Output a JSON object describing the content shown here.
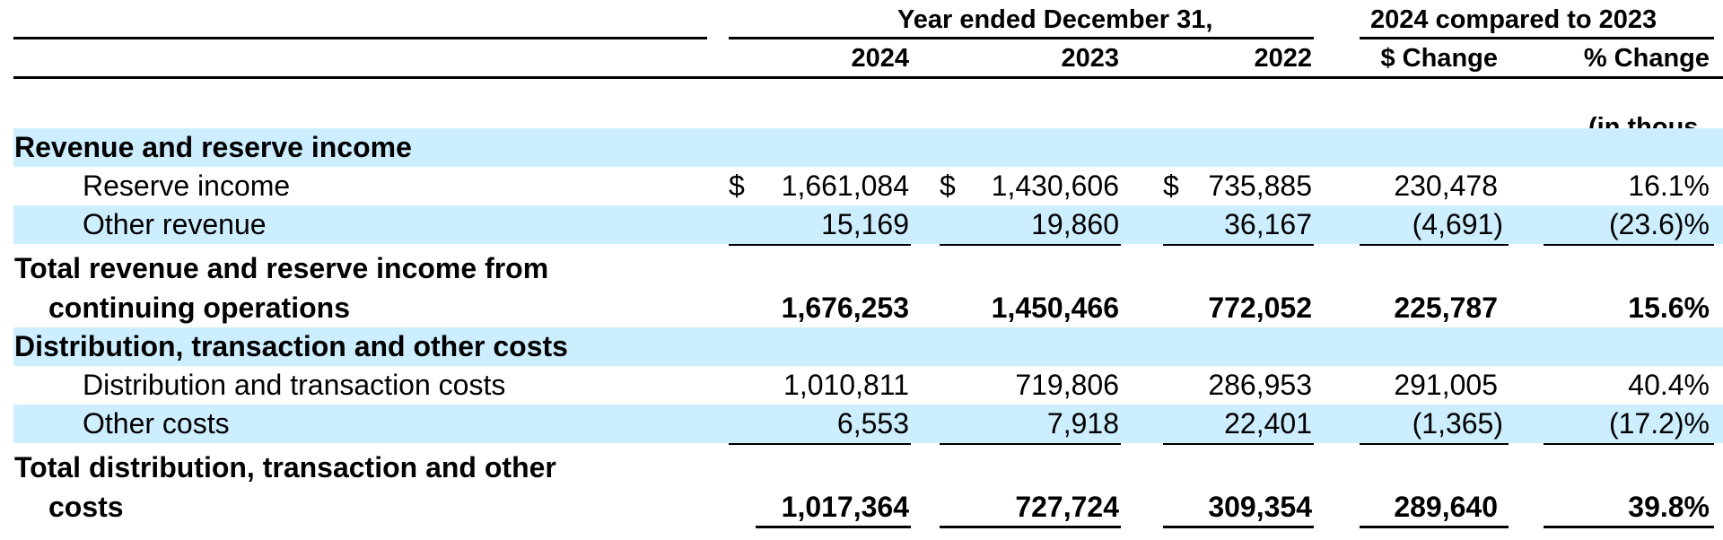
{
  "header": {
    "group_year_ended": "Year ended December 31,",
    "group_compare": "2024 compared to 2023",
    "col_2024": "2024",
    "col_2023": "2023",
    "col_2022": "2022",
    "col_change_dollar": "$ Change",
    "col_change_pct": "% Change",
    "units": "(in thous"
  },
  "rows": {
    "section_revenue": {
      "label": "Revenue and reserve income"
    },
    "reserve_income": {
      "label": "Reserve income",
      "dollar_sign": "$",
      "v2024": "1,661,084",
      "v2023": "1,430,606",
      "v2022": "735,885",
      "change": "230,478",
      "pct": "16.1%"
    },
    "other_revenue": {
      "label": "Other revenue",
      "v2024": "15,169",
      "v2023": "19,860",
      "v2022": "36,167",
      "change": "(4,691)",
      "pct": "(23.6)%"
    },
    "total_revenue": {
      "label_line1": "Total revenue and reserve income from",
      "label_line2": "continuing operations",
      "v2024": "1,676,253",
      "v2023": "1,450,466",
      "v2022": "772,052",
      "change": "225,787",
      "pct": "15.6%"
    },
    "section_costs": {
      "label": "Distribution, transaction and other costs"
    },
    "distribution_costs": {
      "label": "Distribution and transaction costs",
      "v2024": "1,010,811",
      "v2023": "719,806",
      "v2022": "286,953",
      "change": "291,005",
      "pct": "40.4%"
    },
    "other_costs": {
      "label": "Other costs",
      "v2024": "6,553",
      "v2023": "7,918",
      "v2022": "22,401",
      "change": "(1,365)",
      "pct": "(17.2)%"
    },
    "total_costs": {
      "label_line1": "Total distribution, transaction and other",
      "label_line2": "costs",
      "v2024": "1,017,364",
      "v2023": "727,724",
      "v2022": "309,354",
      "change": "289,640",
      "pct": "39.8%"
    }
  },
  "colors": {
    "band": "#cdeefe",
    "text": "#000000"
  }
}
